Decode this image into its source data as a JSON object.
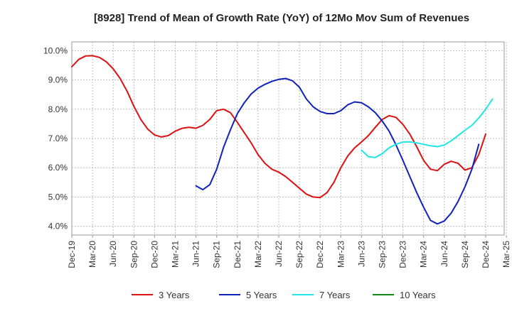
{
  "chart_data": {
    "type": "line",
    "title": "[8928]  Trend of Mean of Growth Rate (YoY) of 12Mo Mov Sum of Revenues",
    "xlabel": "",
    "ylabel": "",
    "ylim": [
      3.7,
      10.3
    ],
    "yticks": [
      4.0,
      5.0,
      6.0,
      7.0,
      8.0,
      9.0,
      10.0
    ],
    "ytick_labels": [
      "4.0%",
      "5.0%",
      "6.0%",
      "7.0%",
      "8.0%",
      "9.0%",
      "10.0%"
    ],
    "xticks": [
      "Dec-19",
      "Mar-20",
      "Jun-20",
      "Sep-20",
      "Dec-20",
      "Mar-21",
      "Jun-21",
      "Sep-21",
      "Dec-21",
      "Mar-22",
      "Jun-22",
      "Sep-22",
      "Dec-22",
      "Mar-23",
      "Jun-23",
      "Sep-23",
      "Dec-23",
      "Mar-24",
      "Jun-24",
      "Sep-24",
      "Dec-24",
      "Mar-25"
    ],
    "grid": true,
    "legend_position": "bottom",
    "series": [
      {
        "name": "3 Years",
        "color": "#dd1111",
        "start_month": 0,
        "values": [
          9.45,
          9.7,
          9.82,
          9.83,
          9.77,
          9.62,
          9.38,
          9.05,
          8.62,
          8.1,
          7.65,
          7.32,
          7.12,
          7.05,
          7.1,
          7.25,
          7.35,
          7.38,
          7.35,
          7.45,
          7.65,
          7.95,
          8.0,
          7.88,
          7.55,
          7.2,
          6.85,
          6.45,
          6.15,
          5.95,
          5.85,
          5.7,
          5.5,
          5.3,
          5.1,
          5.0,
          4.98,
          5.15,
          5.5,
          6.0,
          6.4,
          6.68,
          6.88,
          7.1,
          7.38,
          7.65,
          7.78,
          7.72,
          7.48,
          7.15,
          6.72,
          6.25,
          5.95,
          5.9,
          6.12,
          6.22,
          6.15,
          5.92,
          6.0,
          6.45,
          7.15
        ]
      },
      {
        "name": "5 Years",
        "color": "#1122bb",
        "start_month": 18,
        "values": [
          5.38,
          5.25,
          5.42,
          5.95,
          6.7,
          7.3,
          7.85,
          8.22,
          8.52,
          8.72,
          8.85,
          8.95,
          9.02,
          9.05,
          8.97,
          8.75,
          8.35,
          8.08,
          7.92,
          7.85,
          7.85,
          7.95,
          8.15,
          8.25,
          8.22,
          8.08,
          7.88,
          7.6,
          7.25,
          6.78,
          6.25,
          5.7,
          5.15,
          4.65,
          4.2,
          4.08,
          4.18,
          4.45,
          4.85,
          5.35,
          5.95,
          6.8
        ]
      },
      {
        "name": "7 Years",
        "color": "#22e5e5",
        "start_month": 42,
        "values": [
          6.6,
          6.38,
          6.35,
          6.48,
          6.68,
          6.8,
          6.88,
          6.88,
          6.85,
          6.8,
          6.75,
          6.72,
          6.78,
          6.92,
          7.1,
          7.28,
          7.45,
          7.7,
          8.0,
          8.35
        ]
      },
      {
        "name": "10 Years",
        "color": "#118811",
        "start_month": 0,
        "values": []
      }
    ]
  }
}
